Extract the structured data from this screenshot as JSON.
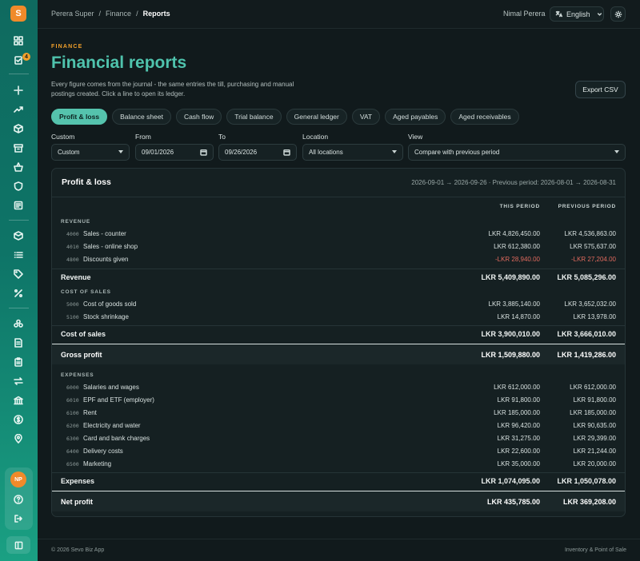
{
  "app": {
    "logo_letter": "S"
  },
  "sidebar": {
    "badge_count": "4",
    "avatar_initials": "NP",
    "icons": [
      "dashboard-icon",
      "tasks-icon",
      "sparkle-icon",
      "trending-icon",
      "box-icon",
      "archive-icon",
      "basket-icon",
      "shield-icon",
      "receipt-icon",
      "package-icon",
      "list-icon",
      "tag-icon",
      "percent-icon",
      "users-icon",
      "ledger-icon",
      "clipboard-icon",
      "transfer-icon",
      "bank-icon",
      "dollar-icon",
      "location-icon",
      "help-icon",
      "logout-icon",
      "panel-icon"
    ]
  },
  "header": {
    "breadcrumb": [
      "Perera Super",
      "Finance",
      "Reports"
    ],
    "user_name": "Nimal Perera",
    "language": "English"
  },
  "page": {
    "eyebrow": "FINANCE",
    "title": "Financial reports",
    "description": "Every figure comes from the journal - the same entries the till, purchasing and manual postings created. Click a line to open its ledger.",
    "export_label": "Export CSV"
  },
  "tabs": [
    {
      "label": "Profit & loss",
      "active": true
    },
    {
      "label": "Balance sheet",
      "active": false
    },
    {
      "label": "Cash flow",
      "active": false
    },
    {
      "label": "Trial balance",
      "active": false
    },
    {
      "label": "General ledger",
      "active": false
    },
    {
      "label": "VAT",
      "active": false
    },
    {
      "label": "Aged payables",
      "active": false
    },
    {
      "label": "Aged receivables",
      "active": false
    }
  ],
  "filters": {
    "custom": {
      "label": "Custom",
      "value": "Custom"
    },
    "from": {
      "label": "From",
      "value": "09/01/2026"
    },
    "to": {
      "label": "To",
      "value": "09/26/2026"
    },
    "location": {
      "label": "Location",
      "value": "All locations"
    },
    "view": {
      "label": "View",
      "value": "Compare with previous period"
    }
  },
  "report": {
    "title": "Profit & loss",
    "range": "2026-09-01 → 2026-09-26 · Previous period: 2026-08-01 → 2026-08-31",
    "col_this": "THIS PERIOD",
    "col_prev": "PREVIOUS PERIOD",
    "revenue": {
      "heading": "REVENUE",
      "rows": [
        {
          "code": "4000",
          "label": "Sales - counter",
          "this": "LKR 4,826,450.00",
          "prev": "LKR 4,536,863.00"
        },
        {
          "code": "4010",
          "label": "Sales - online shop",
          "this": "LKR 612,380.00",
          "prev": "LKR 575,637.00"
        },
        {
          "code": "4800",
          "label": "Discounts given",
          "this": "-LKR 28,940.00",
          "prev": "-LKR 27,204.00"
        }
      ],
      "subtotal": {
        "label": "Revenue",
        "this": "LKR 5,409,890.00",
        "prev": "LKR 5,085,296.00"
      }
    },
    "cost": {
      "heading": "COST OF SALES",
      "rows": [
        {
          "code": "5000",
          "label": "Cost of goods sold",
          "this": "LKR 3,885,140.00",
          "prev": "LKR 3,652,032.00"
        },
        {
          "code": "5100",
          "label": "Stock shrinkage",
          "this": "LKR 14,870.00",
          "prev": "LKR 13,978.00"
        }
      ],
      "subtotal": {
        "label": "Cost of sales",
        "this": "LKR 3,900,010.00",
        "prev": "LKR 3,666,010.00"
      }
    },
    "gross": {
      "label": "Gross profit",
      "this": "LKR 1,509,880.00",
      "prev": "LKR 1,419,286.00"
    },
    "expenses": {
      "heading": "EXPENSES",
      "rows": [
        {
          "code": "6000",
          "label": "Salaries and wages",
          "this": "LKR 612,000.00",
          "prev": "LKR 612,000.00"
        },
        {
          "code": "6010",
          "label": "EPF and ETF (employer)",
          "this": "LKR 91,800.00",
          "prev": "LKR 91,800.00"
        },
        {
          "code": "6100",
          "label": "Rent",
          "this": "LKR 185,000.00",
          "prev": "LKR 185,000.00"
        },
        {
          "code": "6200",
          "label": "Electricity and water",
          "this": "LKR 96,420.00",
          "prev": "LKR 90,635.00"
        },
        {
          "code": "6300",
          "label": "Card and bank charges",
          "this": "LKR 31,275.00",
          "prev": "LKR 29,399.00"
        },
        {
          "code": "6400",
          "label": "Delivery costs",
          "this": "LKR 22,600.00",
          "prev": "LKR 21,244.00"
        },
        {
          "code": "6500",
          "label": "Marketing",
          "this": "LKR 35,000.00",
          "prev": "LKR 20,000.00"
        }
      ],
      "subtotal": {
        "label": "Expenses",
        "this": "LKR 1,074,095.00",
        "prev": "LKR 1,050,078.00"
      }
    },
    "net": {
      "label": "Net profit",
      "this": "LKR 435,785.00",
      "prev": "LKR 369,208.00"
    }
  },
  "footer": {
    "left": "© 2026 Sevo Biz App",
    "right": "Inventory & Point of Sale"
  },
  "colors": {
    "accent": "#4fc3ad",
    "brand": "#f08a2a",
    "negative": "#e06a5e"
  }
}
